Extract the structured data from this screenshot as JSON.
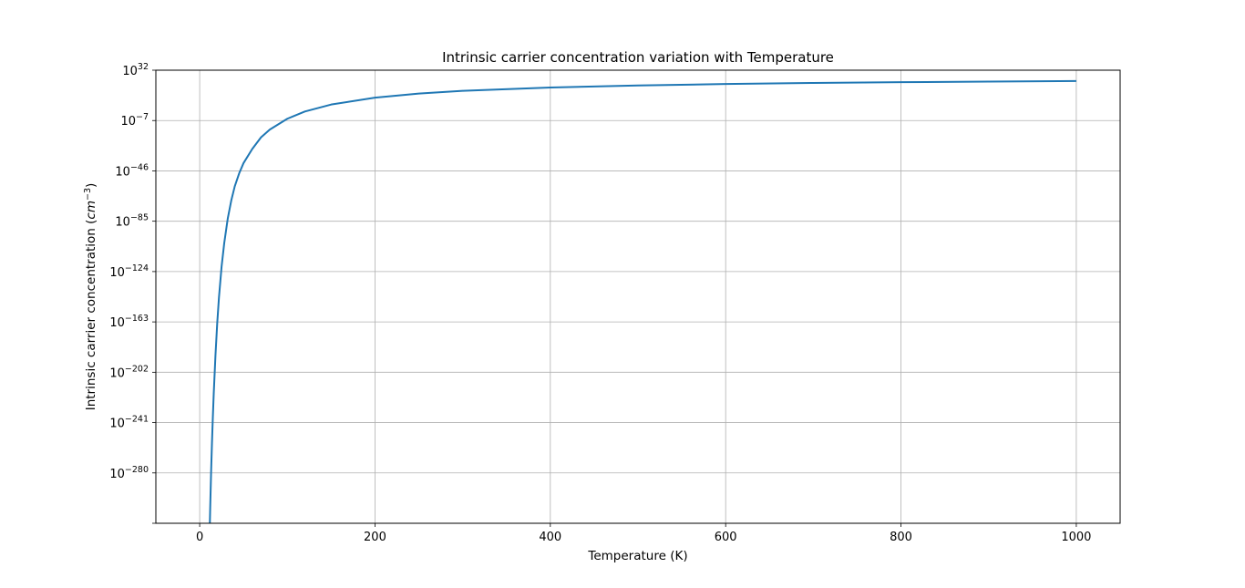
{
  "chart_data": {
    "type": "line",
    "title": "Intrinsic carrier concentration variation with Temperature",
    "xlabel": "Temperature (K)",
    "ylabel_main": "Intrinsic carrier concentration (",
    "ylabel_unit_base": "cm",
    "ylabel_unit_exp": "−3",
    "ylabel_close": ")",
    "y_scale": "log",
    "grid": true,
    "xlim": [
      -50,
      1050
    ],
    "ylim_exponent": [
      -319,
      32
    ],
    "x_ticks": [
      {
        "value": 0,
        "label": "0"
      },
      {
        "value": 200,
        "label": "200"
      },
      {
        "value": 400,
        "label": "400"
      },
      {
        "value": 600,
        "label": "600"
      },
      {
        "value": 800,
        "label": "800"
      },
      {
        "value": 1000,
        "label": "1000"
      }
    ],
    "y_ticks": [
      {
        "exponent": 32,
        "base": "10",
        "sup": "32"
      },
      {
        "exponent": -7,
        "base": "10",
        "sup": "−7"
      },
      {
        "exponent": -46,
        "base": "10",
        "sup": "−46"
      },
      {
        "exponent": -85,
        "base": "10",
        "sup": "−85"
      },
      {
        "exponent": -124,
        "base": "10",
        "sup": "−124"
      },
      {
        "exponent": -163,
        "base": "10",
        "sup": "−163"
      },
      {
        "exponent": -202,
        "base": "10",
        "sup": "−202"
      },
      {
        "exponent": -241,
        "base": "10",
        "sup": "−241"
      },
      {
        "exponent": -280,
        "base": "10",
        "sup": "−280"
      }
    ],
    "series": [
      {
        "color": "#1f77b4",
        "points": [
          {
            "x": 11.6,
            "log10_y": -319
          },
          {
            "x": 12,
            "log10_y": -307
          },
          {
            "x": 13,
            "log10_y": -280
          },
          {
            "x": 14,
            "log10_y": -257
          },
          {
            "x": 15,
            "log10_y": -237
          },
          {
            "x": 16,
            "log10_y": -219
          },
          {
            "x": 18,
            "log10_y": -189
          },
          {
            "x": 20,
            "log10_y": -164
          },
          {
            "x": 22,
            "log10_y": -144
          },
          {
            "x": 25,
            "log10_y": -120
          },
          {
            "x": 28,
            "log10_y": -102
          },
          {
            "x": 32,
            "log10_y": -83
          },
          {
            "x": 36,
            "log10_y": -69
          },
          {
            "x": 40,
            "log10_y": -58
          },
          {
            "x": 45,
            "log10_y": -48
          },
          {
            "x": 50,
            "log10_y": -40
          },
          {
            "x": 60,
            "log10_y": -29
          },
          {
            "x": 70,
            "log10_y": -20
          },
          {
            "x": 80,
            "log10_y": -14
          },
          {
            "x": 100,
            "log10_y": -5.6
          },
          {
            "x": 120,
            "log10_y": 0
          },
          {
            "x": 150,
            "log10_y": 5.4
          },
          {
            "x": 200,
            "log10_y": 10.7
          },
          {
            "x": 250,
            "log10_y": 13.9
          },
          {
            "x": 300,
            "log10_y": 16.0
          },
          {
            "x": 400,
            "log10_y": 18.6
          },
          {
            "x": 500,
            "log10_y": 20.2
          },
          {
            "x": 600,
            "log10_y": 21.3
          },
          {
            "x": 700,
            "log10_y": 22.1
          },
          {
            "x": 800,
            "log10_y": 22.7
          },
          {
            "x": 900,
            "log10_y": 23.2
          },
          {
            "x": 1000,
            "log10_y": 23.6
          }
        ]
      }
    ]
  }
}
